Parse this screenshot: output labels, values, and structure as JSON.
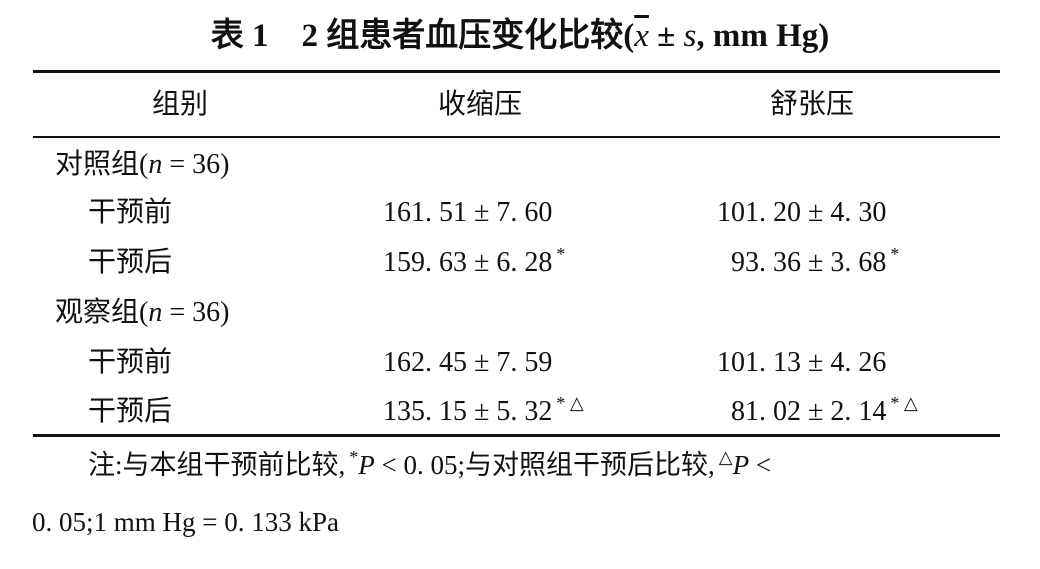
{
  "title": {
    "prefix": "表 1　2 组患者血压变化比较(",
    "xbar": "x",
    "pm": " ± ",
    "s": "s",
    "suffix": ", mm Hg)"
  },
  "headers": [
    "组别",
    "收缩压",
    "舒张压"
  ],
  "groups": [
    {
      "label": "对照组(",
      "n_var": "n",
      "n_val": " = 36)",
      "rows": [
        {
          "label": "干预前",
          "systolic": "161. 51 ± 7. 60",
          "systolic_mark": "",
          "diastolic": "101. 20 ± 4. 30",
          "diastolic_mark": ""
        },
        {
          "label": "干预后",
          "systolic": "159. 63 ± 6. 28",
          "systolic_mark": "*",
          "diastolic": "93. 36 ± 3. 68",
          "diastolic_mark": "*"
        }
      ]
    },
    {
      "label": "观察组(",
      "n_var": "n",
      "n_val": " = 36)",
      "rows": [
        {
          "label": "干预前",
          "systolic": "162. 45 ± 7. 59",
          "systolic_mark": "",
          "diastolic": "101. 13 ± 4. 26",
          "diastolic_mark": ""
        },
        {
          "label": "干预后",
          "systolic": "135. 15 ± 5. 32",
          "systolic_mark": "* △",
          "diastolic": "81. 02 ± 2. 14",
          "diastolic_mark": "* △"
        }
      ]
    }
  ],
  "note": {
    "line1_a": "注:与本组干预前比较,",
    "mark1": "*",
    "p1": "P",
    "line1_b": " < 0. 05;与对照组干预后比较,",
    "mark2": "△",
    "p2": "P",
    "line1_c": " <",
    "line2": "0. 05;1 mm Hg = 0. 133 kPa"
  }
}
